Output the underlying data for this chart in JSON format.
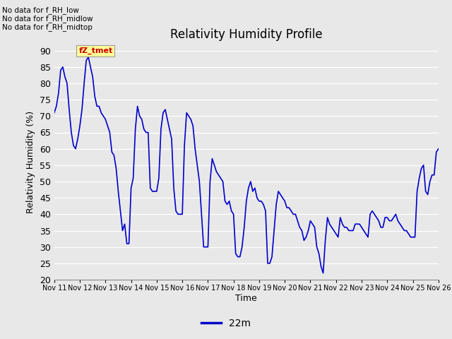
{
  "title": "Relativity Humidity Profile",
  "xlabel": "Time",
  "ylabel": "Relativity Humidity (%)",
  "ylim": [
    20,
    92
  ],
  "yticks": [
    20,
    25,
    30,
    35,
    40,
    45,
    50,
    55,
    60,
    65,
    70,
    75,
    80,
    85,
    90
  ],
  "line_color": "#0000cc",
  "line_width": 1.2,
  "legend_label": "22m",
  "no_data_texts": [
    "No data for f_RH_low",
    "No data for f_RH_midlow",
    "No data for f_RH_midtop"
  ],
  "tmet_label": "fZ_tmet",
  "bg_color": "#e8e8e8",
  "x_tick_labels": [
    "Nov 11",
    "Nov 12",
    "Nov 13",
    "Nov 14",
    "Nov 15",
    "Nov 16",
    "Nov 17",
    "Nov 18",
    "Nov 19",
    "Nov 20",
    "Nov 21",
    "Nov 22",
    "Nov 23",
    "Nov 24",
    "Nov 25",
    "Nov 26"
  ],
  "x_tick_positions": [
    0,
    1,
    2,
    3,
    4,
    5,
    6,
    7,
    8,
    9,
    10,
    11,
    12,
    13,
    14,
    15
  ],
  "time_values": [
    0.0,
    0.083,
    0.167,
    0.25,
    0.333,
    0.417,
    0.5,
    0.583,
    0.667,
    0.75,
    0.833,
    0.917,
    1.0,
    1.083,
    1.167,
    1.25,
    1.333,
    1.417,
    1.5,
    1.583,
    1.667,
    1.75,
    1.833,
    1.917,
    2.0,
    2.083,
    2.167,
    2.25,
    2.333,
    2.417,
    2.5,
    2.583,
    2.667,
    2.75,
    2.833,
    2.917,
    3.0,
    3.083,
    3.167,
    3.25,
    3.333,
    3.417,
    3.5,
    3.583,
    3.667,
    3.75,
    3.833,
    3.917,
    4.0,
    4.083,
    4.167,
    4.25,
    4.333,
    4.417,
    4.5,
    4.583,
    4.667,
    4.75,
    4.833,
    4.917,
    5.0,
    5.083,
    5.167,
    5.25,
    5.333,
    5.417,
    5.5,
    5.583,
    5.667,
    5.75,
    5.833,
    5.917,
    6.0,
    6.083,
    6.167,
    6.25,
    6.333,
    6.417,
    6.5,
    6.583,
    6.667,
    6.75,
    6.833,
    6.917,
    7.0,
    7.083,
    7.167,
    7.25,
    7.333,
    7.417,
    7.5,
    7.583,
    7.667,
    7.75,
    7.833,
    7.917,
    8.0,
    8.083,
    8.167,
    8.25,
    8.333,
    8.417,
    8.5,
    8.583,
    8.667,
    8.75,
    8.833,
    8.917,
    9.0,
    9.083,
    9.167,
    9.25,
    9.333,
    9.417,
    9.5,
    9.583,
    9.667,
    9.75,
    9.833,
    9.917,
    10.0,
    10.083,
    10.167,
    10.25,
    10.333,
    10.417,
    10.5,
    10.583,
    10.667,
    10.75,
    10.833,
    10.917,
    11.0,
    11.083,
    11.167,
    11.25,
    11.333,
    11.417,
    11.5,
    11.583,
    11.667,
    11.75,
    11.833,
    11.917,
    12.0,
    12.083,
    12.167,
    12.25,
    12.333,
    12.417,
    12.5,
    12.583,
    12.667,
    12.75,
    12.833,
    12.917,
    13.0,
    13.083,
    13.167,
    13.25,
    13.333,
    13.417,
    13.5,
    13.583,
    13.667,
    13.75,
    13.833,
    13.917,
    14.0,
    14.083,
    14.167,
    14.25,
    14.333,
    14.417,
    14.5,
    14.583,
    14.667,
    14.75,
    14.833,
    14.917,
    15.0
  ],
  "humidity_values": [
    71,
    73,
    77,
    84,
    85,
    82,
    80,
    72,
    65,
    61,
    60,
    63,
    67,
    72,
    80,
    87,
    88,
    85,
    82,
    76,
    73,
    73,
    71,
    70,
    69,
    67,
    65,
    59,
    58,
    54,
    47,
    41,
    35,
    37,
    31,
    31,
    48,
    51,
    66,
    73,
    70,
    69,
    66,
    65,
    65,
    48,
    47,
    47,
    47,
    51,
    66,
    71,
    72,
    69,
    66,
    63,
    48,
    41,
    40,
    40,
    40,
    61,
    71,
    70,
    69,
    67,
    60,
    55,
    50,
    40,
    30,
    30,
    30,
    50,
    57,
    55,
    53,
    52,
    51,
    50,
    44,
    43,
    44,
    41,
    40,
    28,
    27,
    27,
    30,
    36,
    44,
    48,
    50,
    47,
    48,
    45,
    44,
    44,
    43,
    41,
    25,
    25,
    27,
    35,
    43,
    47,
    46,
    45,
    44,
    42,
    42,
    41,
    40,
    40,
    38,
    36,
    35,
    32,
    33,
    35,
    38,
    37,
    36,
    30,
    28,
    24,
    22,
    32,
    39,
    37,
    36,
    35,
    34,
    33,
    39,
    37,
    36,
    36,
    35,
    35,
    35,
    37,
    37,
    37,
    36,
    35,
    34,
    33,
    40,
    41,
    40,
    39,
    38,
    36,
    36,
    39,
    39,
    38,
    38,
    39,
    40,
    38,
    37,
    36,
    35,
    35,
    34,
    33,
    33,
    33,
    47,
    51,
    54,
    55,
    47,
    46,
    50,
    52,
    52,
    59,
    60
  ]
}
